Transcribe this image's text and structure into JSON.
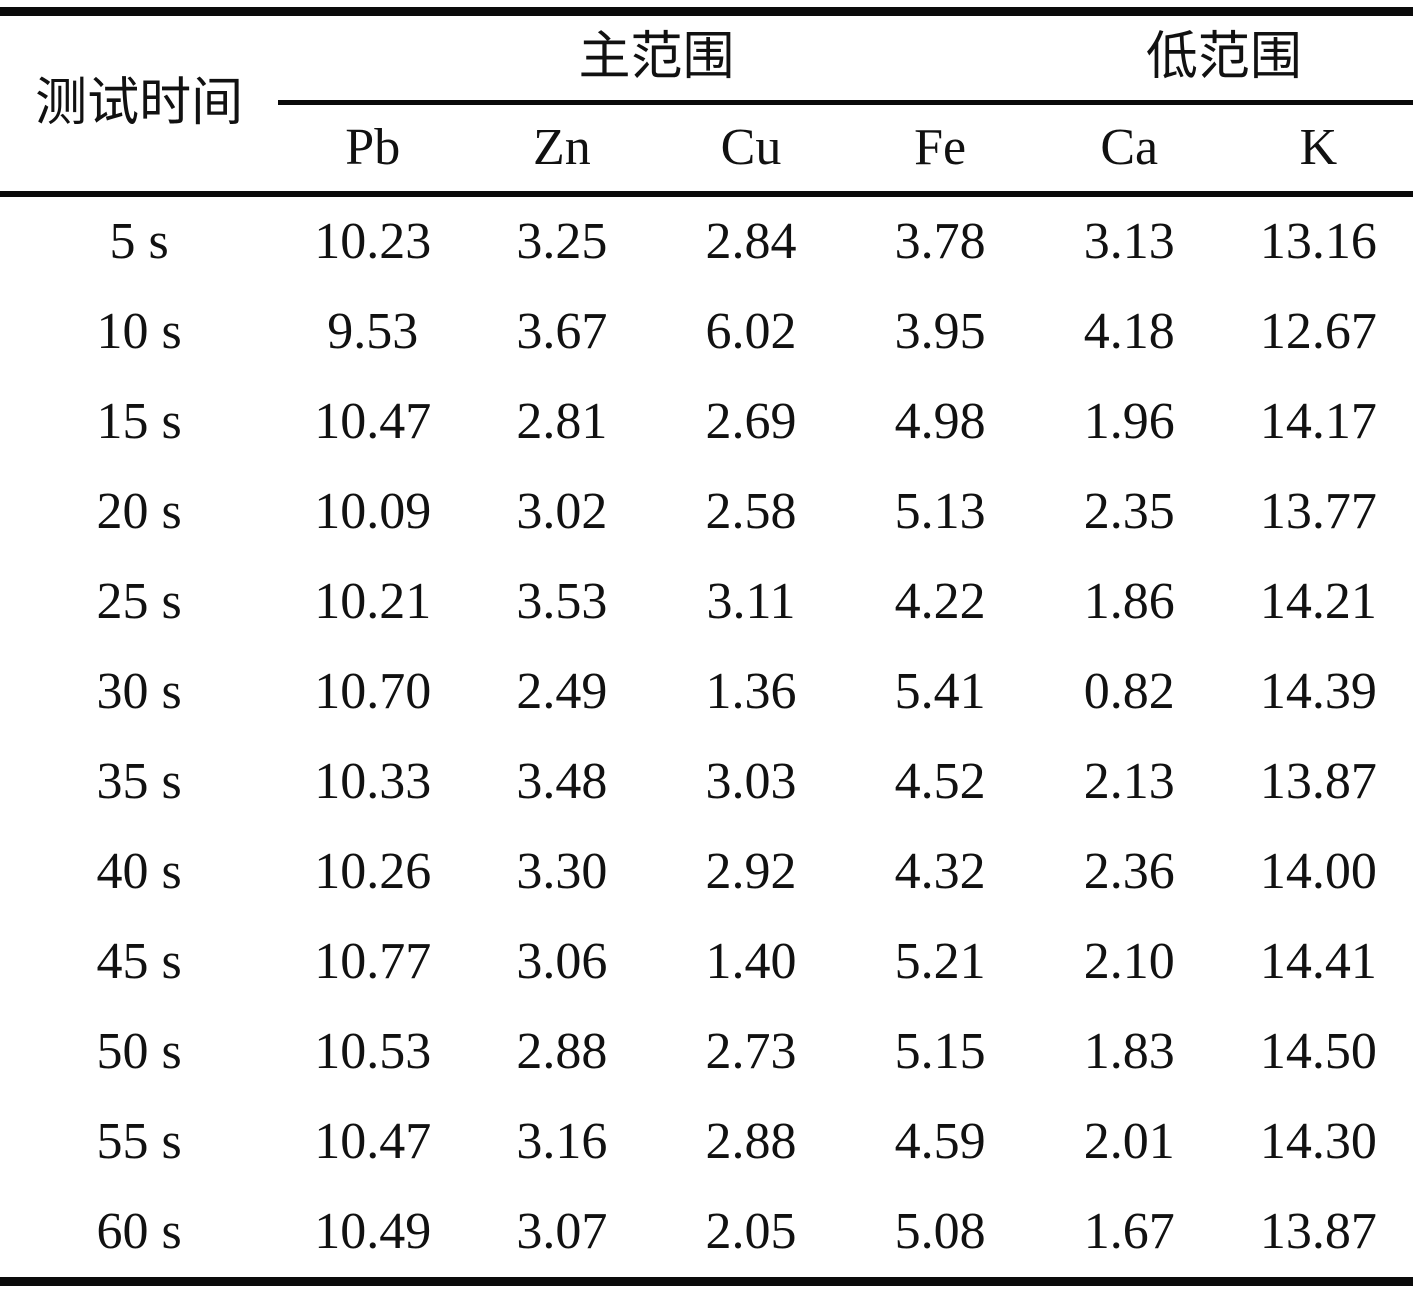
{
  "table": {
    "time_header": "测试时间",
    "group_headers": [
      {
        "label": "主范围",
        "span": 4
      },
      {
        "label": "低范围",
        "span": 2
      }
    ],
    "element_headers": [
      "Pb",
      "Zn",
      "Cu",
      "Fe",
      "Ca",
      "K"
    ],
    "rows": [
      {
        "time": "5 s",
        "values": [
          "10.23",
          "3.25",
          "2.84",
          "3.78",
          "3.13",
          "13.16"
        ]
      },
      {
        "time": "10 s",
        "values": [
          "9.53",
          "3.67",
          "6.02",
          "3.95",
          "4.18",
          "12.67"
        ]
      },
      {
        "time": "15 s",
        "values": [
          "10.47",
          "2.81",
          "2.69",
          "4.98",
          "1.96",
          "14.17"
        ]
      },
      {
        "time": "20 s",
        "values": [
          "10.09",
          "3.02",
          "2.58",
          "5.13",
          "2.35",
          "13.77"
        ]
      },
      {
        "time": "25 s",
        "values": [
          "10.21",
          "3.53",
          "3.11",
          "4.22",
          "1.86",
          "14.21"
        ]
      },
      {
        "time": "30 s",
        "values": [
          "10.70",
          "2.49",
          "1.36",
          "5.41",
          "0.82",
          "14.39"
        ]
      },
      {
        "time": "35 s",
        "values": [
          "10.33",
          "3.48",
          "3.03",
          "4.52",
          "2.13",
          "13.87"
        ]
      },
      {
        "time": "40 s",
        "values": [
          "10.26",
          "3.30",
          "2.92",
          "4.32",
          "2.36",
          "14.00"
        ]
      },
      {
        "time": "45 s",
        "values": [
          "10.77",
          "3.06",
          "1.40",
          "5.21",
          "2.10",
          "14.41"
        ]
      },
      {
        "time": "50 s",
        "values": [
          "10.53",
          "2.88",
          "2.73",
          "5.15",
          "1.83",
          "14.50"
        ]
      },
      {
        "time": "55 s",
        "values": [
          "10.47",
          "3.16",
          "2.88",
          "4.59",
          "2.01",
          "14.30"
        ]
      },
      {
        "time": "60 s",
        "values": [
          "10.49",
          "3.07",
          "2.05",
          "5.08",
          "1.67",
          "13.87"
        ]
      }
    ]
  }
}
